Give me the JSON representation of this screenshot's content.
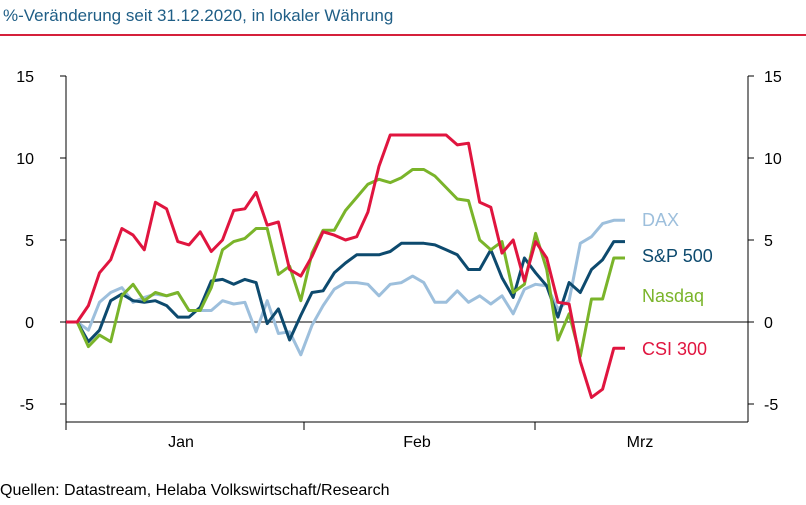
{
  "header": {
    "title": "%-Veränderung seit 31.12.2020, in lokaler Währung"
  },
  "footer": {
    "source": "Quellen: Datastream, Helaba Volkswirtschaft/Research"
  },
  "colors": {
    "title": "#1f5e86",
    "rule": "#d5203b"
  },
  "chart_data": {
    "type": "line",
    "ylim": [
      -5,
      15
    ],
    "yticks": [
      15,
      10,
      5,
      0,
      -5
    ],
    "ytick_labels": [
      "15",
      "10",
      "5",
      "0",
      "-5"
    ],
    "xticks": [
      "Jan",
      "Feb",
      "Mrz"
    ],
    "grid": false,
    "zero_line": true,
    "series": [
      {
        "name": "DAX",
        "color": "#9dbfdc",
        "values": [
          0,
          0,
          -0.5,
          1.2,
          1.8,
          2.1,
          1.2,
          1.5,
          1.7,
          1.6,
          1.8,
          0.7,
          0.7,
          0.7,
          1.3,
          1.1,
          1.2,
          -0.6,
          1.3,
          -0.7,
          -0.6,
          -2.0,
          -0.2,
          1.0,
          2.0,
          2.4,
          2.4,
          2.3,
          1.6,
          2.3,
          2.4,
          2.8,
          2.4,
          1.2,
          1.2,
          1.9,
          1.2,
          1.6,
          1.1,
          1.6,
          0.5,
          2.0,
          2.3,
          2.2,
          0.8,
          1.3,
          4.8,
          5.2,
          6.0,
          6.2,
          6.2
        ]
      },
      {
        "name": "S&P 500",
        "color": "#0d4a6e",
        "values": [
          0,
          0,
          -1.2,
          -0.5,
          1.3,
          1.7,
          1.3,
          1.2,
          1.3,
          1.0,
          0.3,
          0.3,
          0.9,
          2.5,
          2.6,
          2.3,
          2.6,
          2.4,
          -0.1,
          0.8,
          -1.1,
          0.4,
          1.8,
          1.9,
          3.0,
          3.6,
          4.1,
          4.1,
          4.1,
          4.3,
          4.8,
          4.8,
          4.8,
          4.7,
          4.4,
          4.1,
          3.2,
          3.2,
          4.4,
          2.7,
          1.5,
          3.9,
          3.0,
          2.2,
          0.3,
          2.4,
          1.8,
          3.2,
          3.8,
          4.9,
          4.9
        ]
      },
      {
        "name": "Nasdaq",
        "color": "#7ab42a",
        "values": [
          0,
          0,
          -1.5,
          -0.8,
          -1.2,
          1.6,
          2.3,
          1.3,
          1.8,
          1.6,
          1.8,
          0.7,
          0.7,
          2.1,
          4.4,
          4.9,
          5.1,
          5.7,
          5.7,
          2.9,
          3.4,
          1.3,
          4.2,
          5.6,
          5.6,
          6.8,
          7.6,
          8.4,
          8.7,
          8.5,
          8.8,
          9.3,
          9.3,
          8.9,
          8.2,
          7.5,
          7.4,
          5.0,
          4.4,
          4.9,
          1.8,
          2.3,
          5.4,
          3.2,
          -1.1,
          0.5,
          -2.1,
          1.4,
          1.4,
          3.9,
          3.9
        ]
      },
      {
        "name": "CSI 300",
        "color": "#e0153f",
        "values": [
          0,
          0,
          1.0,
          3.0,
          3.8,
          5.7,
          5.3,
          4.4,
          7.3,
          6.9,
          4.9,
          4.7,
          5.5,
          4.3,
          5.0,
          6.8,
          6.9,
          7.9,
          5.9,
          6.1,
          3.2,
          2.8,
          4.0,
          5.5,
          5.3,
          5.0,
          5.2,
          6.7,
          9.5,
          11.4,
          11.4,
          11.4,
          11.4,
          11.4,
          11.4,
          10.8,
          10.9,
          7.3,
          7.0,
          4.2,
          5.0,
          2.5,
          4.9,
          3.9,
          1.2,
          1.1,
          -2.4,
          -4.6,
          -4.1,
          -1.6,
          -1.6
        ]
      }
    ]
  }
}
